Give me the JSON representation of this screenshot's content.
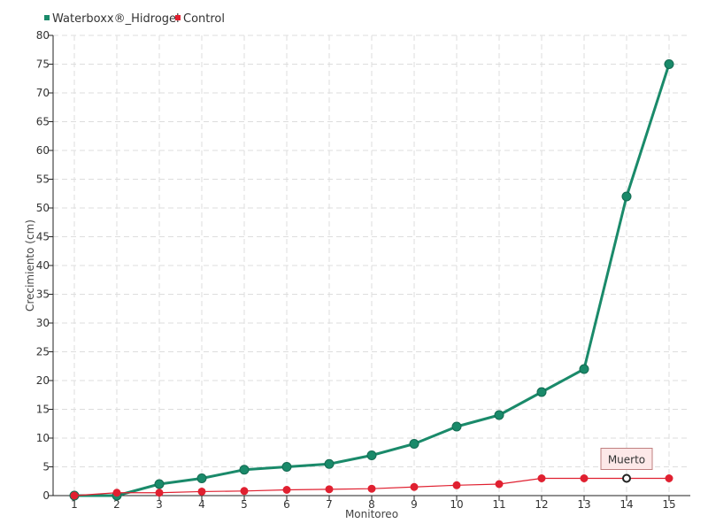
{
  "chart_data": {
    "type": "line",
    "xlabel": "Monitoreo",
    "ylabel": "Crecimiento (cm)",
    "x": [
      1,
      2,
      3,
      4,
      5,
      6,
      7,
      8,
      9,
      10,
      11,
      12,
      13,
      14,
      15
    ],
    "ylim": [
      0,
      80
    ],
    "yticks": [
      0,
      5,
      10,
      15,
      20,
      25,
      30,
      35,
      40,
      45,
      50,
      55,
      60,
      65,
      70,
      75,
      80
    ],
    "grid": true,
    "legend_position": "top-left",
    "series": [
      {
        "name": "Waterboxx®_Hidrogel",
        "color": "#1a8a6a",
        "values": [
          0,
          0,
          2,
          3,
          4.5,
          5,
          5.5,
          7,
          9,
          12,
          14,
          18,
          22,
          52,
          75
        ]
      },
      {
        "name": "Control",
        "color": "#e02030",
        "values": [
          0,
          0.5,
          0.5,
          0.7,
          0.8,
          1,
          1.1,
          1.2,
          1.5,
          1.8,
          2,
          3,
          3,
          3,
          3
        ]
      }
    ],
    "annotations": [
      {
        "series": 1,
        "x": 14,
        "text": "Muerto"
      }
    ]
  }
}
